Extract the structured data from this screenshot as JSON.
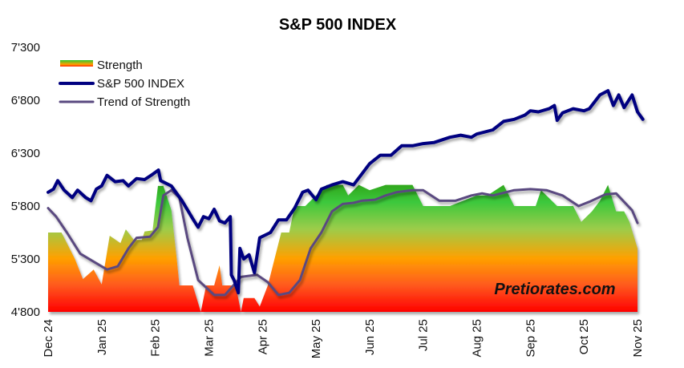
{
  "chart_data": {
    "type": "line",
    "title": "S&P 500 INDEX",
    "watermark": "Pretiorates.com",
    "xlabel": "",
    "ylabel": "",
    "ylim": [
      4800,
      7300
    ],
    "yticks": [
      "4'800",
      "5'300",
      "5'800",
      "6'300",
      "6'800",
      "7'300"
    ],
    "ytick_values": [
      4800,
      5300,
      5800,
      6300,
      6800,
      7300
    ],
    "xticks": [
      "Dec 24",
      "Jan 25",
      "Feb 25",
      "Mar 25",
      "Apr 25",
      "May 25",
      "Jun 25",
      "Jul 25",
      "Aug 25",
      "Sep 25",
      "Oct 25",
      "Nov 25"
    ],
    "x_unit": "months since Dec 24",
    "legend_position": "top-left",
    "grid": false,
    "series": [
      {
        "name": "Strength",
        "kind": "area",
        "color_low": "#ff0000",
        "color_mid": "#ffa000",
        "color_high": "#2ec82e",
        "x": [
          0,
          0.25,
          0.5,
          0.65,
          0.85,
          1.0,
          1.15,
          1.35,
          1.45,
          1.6,
          1.75,
          1.8,
          1.95,
          2.05,
          2.15,
          2.3,
          2.4,
          2.45,
          2.7,
          2.85,
          2.95,
          3.1,
          3.2,
          3.25,
          3.5,
          3.6,
          3.65,
          3.85,
          3.95,
          4.1,
          4.35,
          4.5,
          4.6,
          4.8,
          5.0,
          5.2,
          5.5,
          5.6,
          5.8,
          6.0,
          6.3,
          6.8,
          7.0,
          7.5,
          8.0,
          8.2,
          8.5,
          8.7,
          9.1,
          9.2,
          9.5,
          9.8,
          9.95,
          10.15,
          10.3,
          10.45,
          10.6,
          10.75,
          10.85,
          11.0
        ],
        "values": [
          5550,
          5550,
          5300,
          5110,
          5200,
          5060,
          5520,
          5450,
          5580,
          5480,
          5480,
          5560,
          5570,
          5990,
          5990,
          5760,
          5300,
          5050,
          5050,
          4800,
          5050,
          5050,
          5240,
          5050,
          5050,
          4800,
          4930,
          4930,
          4850,
          5050,
          5550,
          5550,
          5800,
          5800,
          5900,
          6000,
          6000,
          5900,
          6000,
          5950,
          6000,
          6000,
          5800,
          5800,
          5900,
          5900,
          6000,
          5800,
          5800,
          5950,
          5800,
          5800,
          5650,
          5750,
          5850,
          6000,
          5750,
          5750,
          5650,
          5400
        ]
      },
      {
        "name": "S&P 500 INDEX",
        "kind": "line",
        "color": "#000080",
        "x": [
          0,
          0.1,
          0.18,
          0.3,
          0.45,
          0.55,
          0.7,
          0.8,
          0.9,
          1.0,
          1.1,
          1.25,
          1.4,
          1.5,
          1.65,
          1.8,
          1.95,
          2.06,
          2.1,
          2.3,
          2.5,
          2.7,
          2.8,
          2.9,
          3.0,
          3.1,
          3.2,
          3.3,
          3.4,
          3.42,
          3.47,
          3.55,
          3.58,
          3.65,
          3.75,
          3.85,
          3.95,
          4.15,
          4.3,
          4.45,
          4.6,
          4.75,
          4.85,
          5.0,
          5.1,
          5.3,
          5.5,
          5.7,
          5.85,
          6.0,
          6.2,
          6.4,
          6.6,
          6.8,
          7.0,
          7.2,
          7.5,
          7.7,
          7.9,
          8.0,
          8.3,
          8.5,
          8.7,
          8.9,
          9.0,
          9.15,
          9.35,
          9.45,
          9.5,
          9.6,
          9.8,
          10.0,
          10.1,
          10.3,
          10.45,
          10.55,
          10.65,
          10.75,
          10.9,
          11.0,
          11.1
        ],
        "values": [
          5930,
          5960,
          6040,
          5950,
          5880,
          5950,
          5880,
          5850,
          5960,
          5990,
          6090,
          6030,
          6040,
          5990,
          6060,
          6050,
          6100,
          6140,
          6040,
          5990,
          5850,
          5680,
          5600,
          5700,
          5680,
          5770,
          5660,
          5640,
          5700,
          5150,
          5100,
          4980,
          5400,
          5300,
          5340,
          5170,
          5500,
          5550,
          5670,
          5670,
          5780,
          5930,
          5950,
          5860,
          5960,
          6000,
          6030,
          6000,
          6100,
          6200,
          6280,
          6280,
          6370,
          6370,
          6390,
          6400,
          6450,
          6470,
          6450,
          6480,
          6520,
          6600,
          6620,
          6660,
          6700,
          6690,
          6720,
          6750,
          6610,
          6680,
          6720,
          6700,
          6720,
          6850,
          6890,
          6750,
          6850,
          6730,
          6850,
          6690,
          6620
        ]
      },
      {
        "name": "Trend of Strength",
        "kind": "line",
        "color": "#5a4a80",
        "x": [
          0,
          0.15,
          0.35,
          0.6,
          0.9,
          1.1,
          1.3,
          1.5,
          1.65,
          1.9,
          2.05,
          2.15,
          2.3,
          2.45,
          2.6,
          2.8,
          3.1,
          3.3,
          3.6,
          3.9,
          4.1,
          4.3,
          4.5,
          4.7,
          4.9,
          5.1,
          5.3,
          5.5,
          5.7,
          5.85,
          6.1,
          6.3,
          6.5,
          6.8,
          7.0,
          7.3,
          7.6,
          7.9,
          8.1,
          8.3,
          8.7,
          9.0,
          9.3,
          9.6,
          9.9,
          10.1,
          10.4,
          10.6,
          10.9,
          11.0
        ],
        "values": [
          5780,
          5700,
          5550,
          5350,
          5260,
          5200,
          5230,
          5400,
          5500,
          5510,
          5600,
          5900,
          5950,
          5880,
          5500,
          5100,
          4960,
          4960,
          5130,
          5150,
          5080,
          4960,
          4980,
          5100,
          5400,
          5550,
          5750,
          5820,
          5830,
          5850,
          5860,
          5900,
          5930,
          5950,
          5950,
          5850,
          5850,
          5900,
          5920,
          5900,
          5950,
          5960,
          5950,
          5900,
          5800,
          5840,
          5910,
          5920,
          5760,
          5640
        ]
      }
    ]
  }
}
